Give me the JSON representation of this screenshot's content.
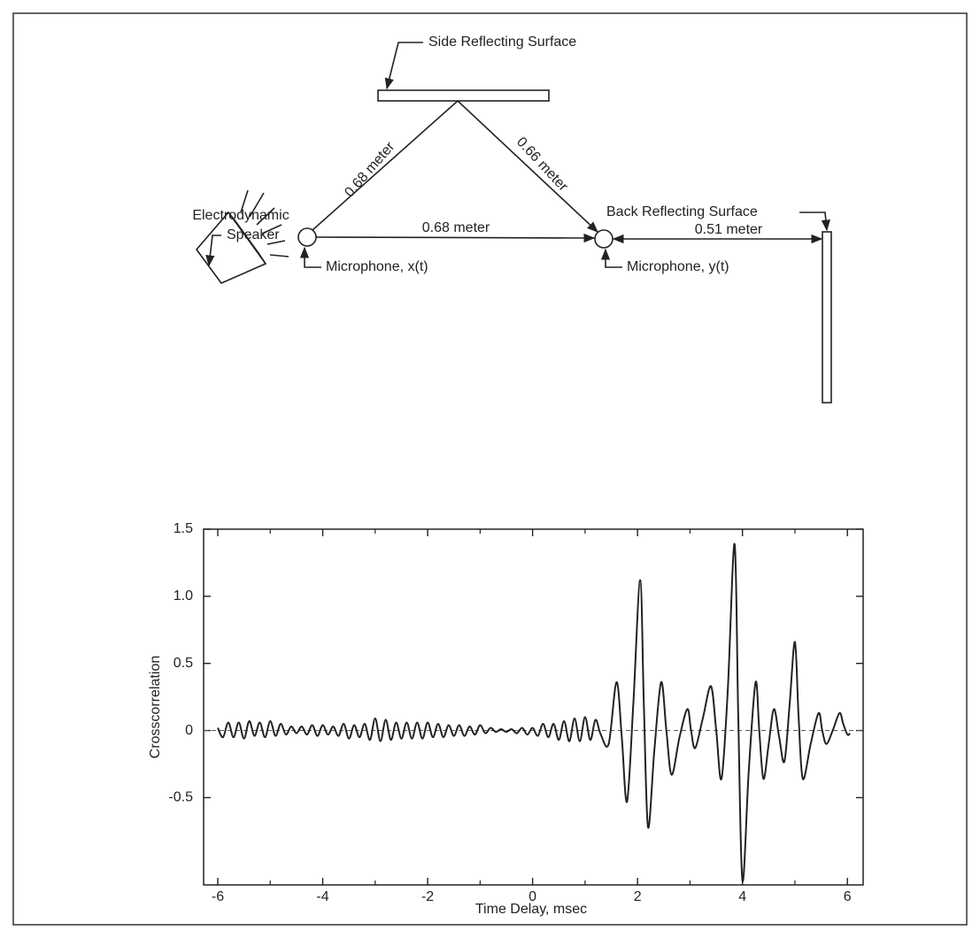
{
  "diagram": {
    "side_surface": "Side Reflecting Surface",
    "back_surface": "Back Reflecting Surface",
    "speaker": [
      "Electrodynamic",
      "Speaker"
    ],
    "mic_x": "Microphone, x(t)",
    "mic_y": "Microphone, y(t)",
    "dist_left": "0.68 meter",
    "dist_right": "0.66 meter",
    "dist_direct": "0.68 meter",
    "dist_back": "0.51 meter"
  },
  "chart_data": {
    "type": "line",
    "xlabel": "Time Delay, msec",
    "ylabel": "Crosscorrelation",
    "xlim": [
      -6.27,
      6.3
    ],
    "ylim": [
      -1.15,
      1.5
    ],
    "xticks": [
      -6,
      -4,
      -2,
      0,
      2,
      4,
      6
    ],
    "xminor": [
      -5,
      -3,
      -1,
      1,
      3,
      5
    ],
    "yticks": [
      -0.5,
      0,
      0.5,
      {
        "value": 1,
        "label": "1.0"
      },
      1.5
    ],
    "zero_line": 0,
    "color": "#222222",
    "x": [
      -6,
      -5.9,
      -5.8,
      -5.7,
      -5.6,
      -5.5,
      -5.4,
      -5.3,
      -5.2,
      -5.1,
      -5,
      -4.9,
      -4.8,
      -4.7,
      -4.6,
      -4.5,
      -4.4,
      -4.3,
      -4.2,
      -4.1,
      -4,
      -3.9,
      -3.8,
      -3.7,
      -3.6,
      -3.5,
      -3.4,
      -3.3,
      -3.2,
      -3.1,
      -3,
      -2.9,
      -2.8,
      -2.7,
      -2.6,
      -2.5,
      -2.4,
      -2.3,
      -2.2,
      -2.1,
      -2,
      -1.9,
      -1.8,
      -1.7,
      -1.6,
      -1.5,
      -1.4,
      -1.3,
      -1.2,
      -1.1,
      -1,
      -0.9,
      -0.8,
      -0.7,
      -0.6,
      -0.5,
      -0.4,
      -0.3,
      -0.2,
      -0.1,
      0,
      0.1,
      0.2,
      0.3,
      0.4,
      0.5,
      0.6,
      0.7,
      0.8,
      0.9,
      1,
      1.1,
      1.2,
      1.3,
      1.45,
      1.6,
      1.7,
      1.8,
      1.92,
      2.05,
      2.12,
      2.2,
      2.32,
      2.45,
      2.55,
      2.65,
      2.8,
      2.95,
      3.02,
      3.1,
      3.25,
      3.4,
      3.5,
      3.6,
      3.72,
      3.85,
      3.92,
      4,
      4.12,
      4.25,
      4.32,
      4.4,
      4.5,
      4.6,
      4.7,
      4.8,
      4.9,
      5,
      5.07,
      5.15,
      5.3,
      5.45,
      5.52,
      5.6,
      5.72,
      5.85,
      5.92,
      6,
      6.05
    ],
    "values": [
      0.02,
      -0.05,
      0.06,
      -0.05,
      0.06,
      -0.06,
      0.07,
      -0.04,
      0.06,
      -0.05,
      0.07,
      -0.04,
      0.05,
      -0.03,
      0.03,
      -0.02,
      0.03,
      -0.03,
      0.04,
      -0.04,
      0.04,
      -0.03,
      0.03,
      -0.04,
      0.05,
      -0.06,
      0.04,
      -0.05,
      0.05,
      -0.07,
      0.09,
      -0.08,
      0.08,
      -0.07,
      0.06,
      -0.06,
      0.06,
      -0.06,
      0.06,
      -0.06,
      0.06,
      -0.05,
      0.05,
      -0.05,
      0.04,
      -0.04,
      0.04,
      -0.04,
      0.03,
      -0.03,
      0.04,
      -0.02,
      0.02,
      -0.01,
      0.01,
      -0.01,
      0.01,
      -0.02,
      0.02,
      -0.03,
      0.02,
      -0.04,
      0.05,
      -0.05,
      0.05,
      -0.07,
      0.07,
      -0.08,
      0.09,
      -0.08,
      0.1,
      -0.07,
      0.08,
      -0.03,
      -0.1,
      0.36,
      -0.05,
      -0.53,
      0.2,
      1.12,
      0.2,
      -0.72,
      -0.15,
      0.36,
      0.0,
      -0.33,
      -0.05,
      0.16,
      0.0,
      -0.13,
      0.1,
      0.33,
      0.0,
      -0.36,
      0.3,
      1.39,
      0.1,
      -1.12,
      -0.3,
      0.36,
      0.0,
      -0.36,
      -0.1,
      0.16,
      -0.05,
      -0.23,
      0.2,
      0.66,
      0.1,
      -0.36,
      -0.1,
      0.13,
      0.0,
      -0.1,
      0.0,
      0.13,
      0.05,
      -0.03,
      -0.02
    ]
  }
}
